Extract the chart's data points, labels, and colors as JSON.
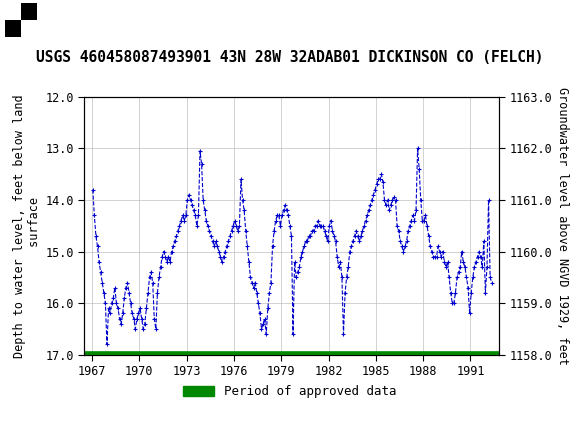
{
  "title": "USGS 460458087493901 43N 28W 32ADAB01 DICKINSON CO (FELCH)",
  "ylabel_left": "Depth to water level, feet below land\n surface",
  "ylabel_right": "Groundwater level above NGVD 1929, feet",
  "ylim_left": [
    17.0,
    12.0
  ],
  "ylim_right": [
    1158.0,
    1163.0
  ],
  "xlim": [
    1966.5,
    1992.8
  ],
  "xticks": [
    1967,
    1970,
    1973,
    1976,
    1979,
    1982,
    1985,
    1988,
    1991
  ],
  "yticks_left": [
    12.0,
    13.0,
    14.0,
    15.0,
    16.0,
    17.0
  ],
  "yticks_right": [
    1158.0,
    1159.0,
    1160.0,
    1161.0,
    1162.0,
    1163.0
  ],
  "line_color": "#0000cc",
  "marker": "+",
  "linestyle": "--",
  "legend_label": "Period of approved data",
  "legend_color": "#008800",
  "header_color": "#1a7a4a",
  "background_color": "#ffffff",
  "grid_color": "#c0c0c0",
  "title_fontsize": 10.5,
  "axis_label_fontsize": 8.5,
  "tick_fontsize": 8.5,
  "data_x": [
    1967.05,
    1967.15,
    1967.25,
    1967.35,
    1967.45,
    1967.55,
    1967.65,
    1967.75,
    1967.85,
    1967.95,
    1968.05,
    1968.15,
    1968.25,
    1968.35,
    1968.45,
    1968.55,
    1968.65,
    1968.75,
    1968.85,
    1968.95,
    1969.05,
    1969.15,
    1969.25,
    1969.35,
    1969.45,
    1969.55,
    1969.65,
    1969.75,
    1969.85,
    1969.95,
    1970.05,
    1970.15,
    1970.25,
    1970.35,
    1970.45,
    1970.55,
    1970.65,
    1970.75,
    1970.85,
    1970.95,
    1971.05,
    1971.15,
    1971.25,
    1971.35,
    1971.45,
    1971.55,
    1971.65,
    1971.75,
    1971.85,
    1971.95,
    1972.05,
    1972.15,
    1972.25,
    1972.35,
    1972.45,
    1972.55,
    1972.65,
    1972.75,
    1972.85,
    1972.95,
    1973.05,
    1973.15,
    1973.25,
    1973.35,
    1973.45,
    1973.55,
    1973.65,
    1973.75,
    1973.85,
    1973.95,
    1974.05,
    1974.15,
    1974.25,
    1974.35,
    1974.45,
    1974.55,
    1974.65,
    1974.75,
    1974.85,
    1974.95,
    1975.05,
    1975.15,
    1975.25,
    1975.35,
    1975.45,
    1975.55,
    1975.65,
    1975.75,
    1975.85,
    1975.95,
    1976.05,
    1976.15,
    1976.25,
    1976.35,
    1976.45,
    1976.55,
    1976.65,
    1976.75,
    1976.85,
    1976.95,
    1977.05,
    1977.15,
    1977.25,
    1977.35,
    1977.45,
    1977.55,
    1977.65,
    1977.75,
    1977.85,
    1977.95,
    1978.05,
    1978.15,
    1978.25,
    1978.35,
    1978.45,
    1978.55,
    1978.65,
    1978.75,
    1978.85,
    1978.95,
    1979.05,
    1979.15,
    1979.25,
    1979.35,
    1979.45,
    1979.55,
    1979.65,
    1979.75,
    1979.85,
    1979.95,
    1980.05,
    1980.15,
    1980.25,
    1980.35,
    1980.45,
    1980.55,
    1980.65,
    1980.75,
    1980.85,
    1980.95,
    1981.05,
    1981.15,
    1981.25,
    1981.35,
    1981.45,
    1981.55,
    1981.65,
    1981.75,
    1981.85,
    1981.95,
    1982.05,
    1982.15,
    1982.25,
    1982.35,
    1982.45,
    1982.55,
    1982.65,
    1982.75,
    1982.85,
    1982.95,
    1983.05,
    1983.15,
    1983.25,
    1983.35,
    1983.45,
    1983.55,
    1983.65,
    1983.75,
    1983.85,
    1983.95,
    1984.05,
    1984.15,
    1984.25,
    1984.35,
    1984.45,
    1984.55,
    1984.65,
    1984.75,
    1984.85,
    1984.95,
    1985.05,
    1985.15,
    1985.25,
    1985.35,
    1985.45,
    1985.55,
    1985.65,
    1985.75,
    1985.85,
    1985.95,
    1986.05,
    1986.15,
    1986.25,
    1986.35,
    1986.45,
    1986.55,
    1986.65,
    1986.75,
    1986.85,
    1986.95,
    1987.05,
    1987.15,
    1987.25,
    1987.35,
    1987.45,
    1987.55,
    1987.65,
    1987.75,
    1987.85,
    1987.95,
    1988.05,
    1988.15,
    1988.25,
    1988.35,
    1988.45,
    1988.55,
    1988.65,
    1988.75,
    1988.85,
    1988.95,
    1989.05,
    1989.15,
    1989.25,
    1989.35,
    1989.45,
    1989.55,
    1989.65,
    1989.75,
    1989.85,
    1989.95,
    1990.05,
    1990.15,
    1990.25,
    1990.35,
    1990.45,
    1990.55,
    1990.65,
    1990.75,
    1990.85,
    1990.95,
    1991.05,
    1991.15,
    1991.25,
    1991.35,
    1991.45,
    1991.55,
    1991.65,
    1991.75,
    1991.85,
    1991.95,
    1992.05,
    1992.15,
    1992.25,
    1992.35
  ],
  "data_y": [
    13.8,
    14.3,
    14.7,
    14.9,
    15.2,
    15.4,
    15.6,
    15.8,
    16.0,
    16.8,
    16.1,
    16.2,
    16.0,
    15.9,
    15.7,
    16.0,
    16.1,
    16.3,
    16.4,
    16.2,
    15.9,
    15.7,
    15.6,
    15.8,
    16.0,
    16.2,
    16.3,
    16.5,
    16.3,
    16.2,
    16.1,
    16.3,
    16.5,
    16.4,
    16.1,
    15.8,
    15.5,
    15.4,
    15.6,
    16.3,
    16.5,
    15.8,
    15.5,
    15.3,
    15.1,
    15.0,
    15.1,
    15.2,
    15.1,
    15.2,
    15.0,
    14.9,
    14.8,
    14.7,
    14.6,
    14.5,
    14.4,
    14.3,
    14.4,
    14.3,
    14.0,
    13.9,
    14.0,
    14.1,
    14.2,
    14.3,
    14.5,
    14.3,
    13.05,
    13.3,
    14.0,
    14.2,
    14.4,
    14.5,
    14.6,
    14.7,
    14.8,
    14.9,
    14.8,
    14.9,
    15.0,
    15.1,
    15.2,
    15.1,
    15.0,
    14.9,
    14.8,
    14.7,
    14.6,
    14.5,
    14.4,
    14.5,
    14.6,
    14.5,
    13.6,
    14.0,
    14.2,
    14.6,
    14.9,
    15.2,
    15.5,
    15.6,
    15.7,
    15.6,
    15.8,
    16.0,
    16.2,
    16.5,
    16.4,
    16.3,
    16.6,
    16.1,
    15.8,
    15.6,
    14.9,
    14.6,
    14.4,
    14.3,
    14.3,
    14.5,
    14.3,
    14.2,
    14.1,
    14.2,
    14.3,
    14.5,
    14.7,
    16.6,
    15.2,
    15.5,
    15.4,
    15.3,
    15.1,
    15.0,
    14.9,
    14.8,
    14.8,
    14.7,
    14.7,
    14.6,
    14.6,
    14.5,
    14.5,
    14.4,
    14.5,
    14.5,
    14.5,
    14.6,
    14.7,
    14.8,
    14.5,
    14.4,
    14.6,
    14.7,
    14.8,
    15.1,
    15.3,
    15.2,
    15.5,
    16.6,
    15.8,
    15.5,
    15.3,
    15.0,
    14.9,
    14.8,
    14.7,
    14.6,
    14.7,
    14.8,
    14.7,
    14.6,
    14.5,
    14.4,
    14.3,
    14.2,
    14.1,
    14.0,
    13.9,
    13.8,
    13.7,
    13.6,
    13.6,
    13.5,
    13.65,
    14.0,
    14.1,
    14.0,
    14.2,
    14.1,
    14.0,
    13.95,
    14.0,
    14.5,
    14.6,
    14.8,
    14.9,
    15.0,
    14.9,
    14.8,
    14.6,
    14.5,
    14.4,
    14.3,
    14.4,
    14.2,
    13.0,
    13.4,
    14.0,
    14.4,
    14.4,
    14.3,
    14.5,
    14.7,
    14.9,
    15.0,
    15.1,
    15.1,
    15.1,
    14.9,
    15.0,
    15.1,
    15.0,
    15.2,
    15.3,
    15.2,
    15.5,
    15.8,
    16.0,
    16.0,
    15.8,
    15.5,
    15.4,
    15.3,
    15.0,
    15.2,
    15.3,
    15.5,
    15.7,
    16.2,
    15.8,
    15.5,
    15.3,
    15.2,
    15.1,
    15.0,
    15.1,
    15.3,
    14.8,
    15.8,
    15.3,
    14.0,
    15.5,
    15.6
  ]
}
